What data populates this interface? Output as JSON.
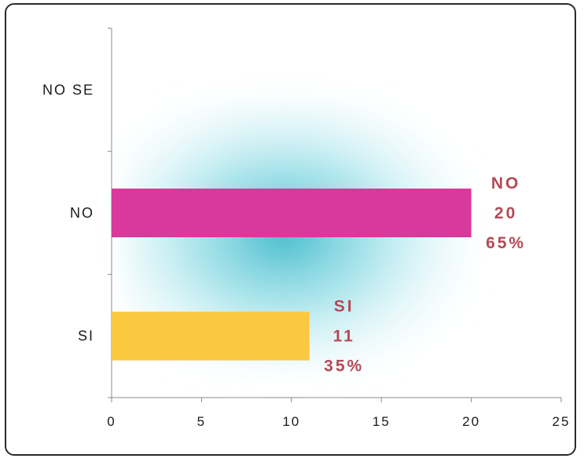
{
  "chart_data": {
    "type": "bar",
    "orientation": "horizontal",
    "categories": [
      "SI",
      "NO",
      "NO SE"
    ],
    "values": [
      11,
      20,
      0
    ],
    "data_labels": [
      {
        "category": "SI",
        "lines": [
          "SI",
          "11",
          "35%"
        ]
      },
      {
        "category": "NO",
        "lines": [
          "NO",
          "20",
          "65%"
        ]
      }
    ],
    "bar_colors": [
      "#fbc940",
      "#d8399a",
      "#d8399a"
    ],
    "data_label_color": "#b34a55",
    "xlim": [
      0,
      25
    ],
    "x_ticks": [
      "0",
      "5",
      "10",
      "15",
      "20",
      "25"
    ],
    "title": "",
    "xlabel": "",
    "ylabel": "",
    "legend": "none",
    "grid": false
  }
}
